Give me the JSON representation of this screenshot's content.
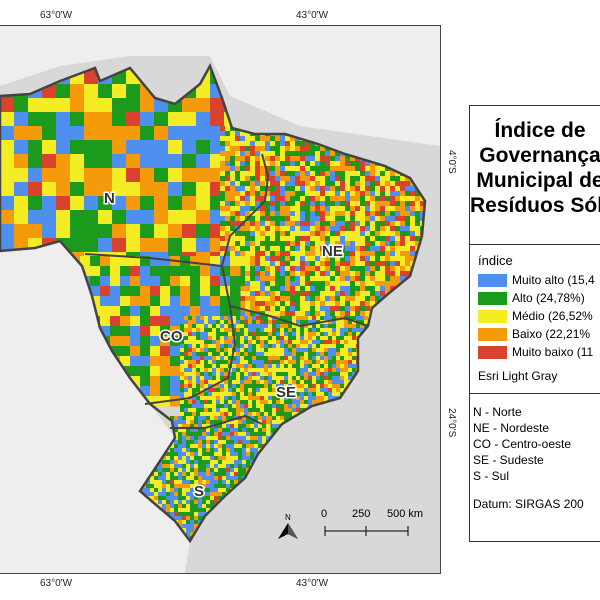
{
  "map": {
    "coords_top": [
      "63°0'W",
      "43°0'W"
    ],
    "coords_bottom": [
      "63°0'W",
      "43°0'W"
    ],
    "coords_right": [
      "4°0'S",
      "24°0'S"
    ],
    "regions": [
      "N",
      "NE",
      "CO",
      "SE",
      "S"
    ],
    "north_arrow_label": "N",
    "scale": {
      "ticks": [
        "0",
        "250",
        "500 km"
      ]
    },
    "colors": {
      "muito_alto": "#4f8ff0",
      "alto": "#1c9a1c",
      "medio": "#f5ed24",
      "baixo": "#f59a0a",
      "muito_baixo": "#d9432e",
      "land": "#f2f2f2",
      "ocean": "#d8d8d8"
    }
  },
  "legend": {
    "title_lines": [
      "Índice de",
      "Governança",
      "Municipal de",
      "Resíduos Sólidos"
    ],
    "heading": "índice",
    "items": [
      {
        "label": "Muito alto (15,4",
        "color": "#4f8ff0"
      },
      {
        "label": "Alto (24,78%)",
        "color": "#1c9a1c"
      },
      {
        "label": "Médio (26,52%",
        "color": "#f5ed24"
      },
      {
        "label": "Baixo (22,21%",
        "color": "#f59a0a"
      },
      {
        "label": "Muito baixo (11",
        "color": "#d9432e"
      }
    ],
    "basemap": "Esri Light Gray",
    "regions": [
      "N - Norte",
      "NE - Nordeste",
      "CO - Centro-oeste",
      "SE - Sudeste",
      "S - Sul"
    ],
    "datum": "Datum: SIRGAS 200"
  }
}
